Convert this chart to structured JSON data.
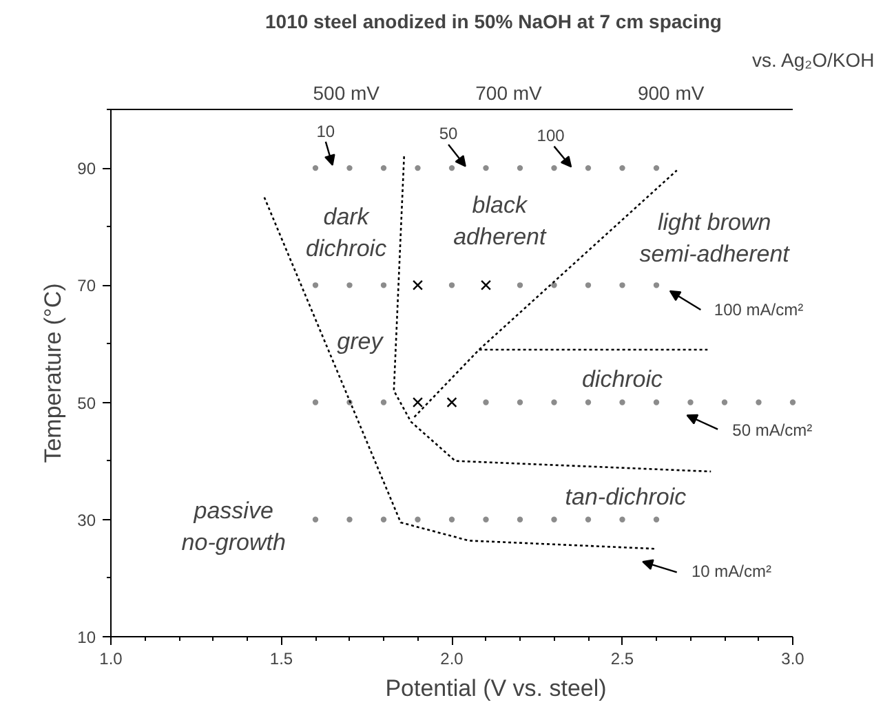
{
  "chart_data": {
    "type": "scatter",
    "title": "1010 steel anodized in 50% NaOH at 7 cm spacing",
    "xlabel": "Potential (V vs. steel)",
    "ylabel": "Temperature (°C)",
    "x2label": "vs. Ag₂O/KOH",
    "xlim": [
      1.0,
      3.0
    ],
    "ylim": [
      10,
      100
    ],
    "x2lim": [
      210,
      1050
    ],
    "xticks": [
      {
        "value": 1.0,
        "label": "1.0"
      },
      {
        "value": 1.1,
        "label": null
      },
      {
        "value": 1.2,
        "label": null
      },
      {
        "value": 1.3,
        "label": null
      },
      {
        "value": 1.4,
        "label": null
      },
      1.5,
      {
        "value": 1.6,
        "label": null
      },
      {
        "value": 1.7,
        "label": null
      },
      {
        "value": 1.8,
        "label": null
      },
      {
        "value": 1.9,
        "label": null
      },
      {
        "value": 2.0,
        "label": "2.0"
      },
      {
        "value": 2.1,
        "label": null
      },
      {
        "value": 2.2,
        "label": null
      },
      {
        "value": 2.3,
        "label": null
      },
      {
        "value": 2.4,
        "label": null
      },
      2.5,
      {
        "value": 2.6,
        "label": null
      },
      {
        "value": 2.7,
        "label": null
      },
      {
        "value": 2.8,
        "label": null
      },
      {
        "value": 2.9,
        "label": null
      },
      {
        "value": 3.0,
        "label": "3.0"
      }
    ],
    "yticks": [
      10,
      {
        "value": 20,
        "label": null
      },
      30,
      {
        "value": 40,
        "label": null
      },
      50,
      {
        "value": 60,
        "label": null
      },
      70,
      {
        "value": 80,
        "label": null
      },
      90,
      {
        "value": 100,
        "label": null
      }
    ],
    "x2ticks": [
      {
        "value": 500,
        "label": "500 mV"
      },
      {
        "value": 700,
        "label": "700 mV"
      },
      {
        "value": 900,
        "label": "900 mV"
      }
    ],
    "grid": false,
    "series": [
      {
        "marker": "circle",
        "color": "#8c8c8c",
        "x": [
          1.6,
          1.7,
          1.8,
          1.9,
          2.0,
          2.1,
          2.2,
          2.3,
          2.4,
          2.5,
          2.6,
          1.6,
          1.7,
          1.8,
          2.0,
          2.2,
          2.3,
          2.4,
          2.5,
          2.6,
          1.6,
          1.7,
          1.8,
          2.1,
          2.2,
          2.3,
          2.4,
          2.5,
          2.6,
          2.7,
          2.8,
          2.9,
          3.0,
          1.6,
          1.7,
          1.8,
          1.9,
          2.0,
          2.1,
          2.2,
          2.3,
          2.4,
          2.5,
          2.6
        ],
        "values": [
          90,
          90,
          90,
          90,
          90,
          90,
          90,
          90,
          90,
          90,
          90,
          70,
          70,
          70,
          70,
          70,
          70,
          70,
          70,
          70,
          50,
          50,
          50,
          50,
          50,
          50,
          50,
          50,
          50,
          50,
          50,
          50,
          50,
          30,
          30,
          30,
          30,
          30,
          30,
          30,
          30,
          30,
          30,
          30
        ]
      },
      {
        "marker": "cross",
        "color": "#000000",
        "x": [
          1.9,
          2.1,
          1.9,
          2.0
        ],
        "values": [
          70,
          70,
          50,
          50
        ]
      },
      {
        "type": "line",
        "line_style": "dotted",
        "color": "#000000",
        "x": [
          1.45,
          1.85,
          2.05,
          2.6
        ],
        "values": [
          85,
          29.5,
          26.4,
          25
        ]
      },
      {
        "type": "line",
        "line_style": "dotted",
        "color": "#000000",
        "x": [
          1.86,
          1.83,
          1.88,
          2.01,
          2.76
        ],
        "values": [
          92,
          52,
          46.7,
          40,
          38.2
        ]
      },
      {
        "type": "line",
        "line_style": "dotted",
        "color": "#000000",
        "x": [
          1.89,
          2.08,
          2.66
        ],
        "values": [
          47.5,
          59,
          89.6
        ]
      },
      {
        "type": "line",
        "line_style": "dotted",
        "color": "#000000",
        "x": [
          2.08,
          2.75
        ],
        "values": [
          59,
          59
        ]
      }
    ],
    "annotations": [
      "dark\ndichroic",
      "black\nadherent",
      "light brown\nsemi-adherent",
      "grey",
      "dichroic",
      "tan-dichroic",
      "passive\nno-growth",
      "10",
      "50",
      "100",
      "100 mA/cm²",
      "50 mA/cm²",
      "10 mA/cm²"
    ]
  }
}
